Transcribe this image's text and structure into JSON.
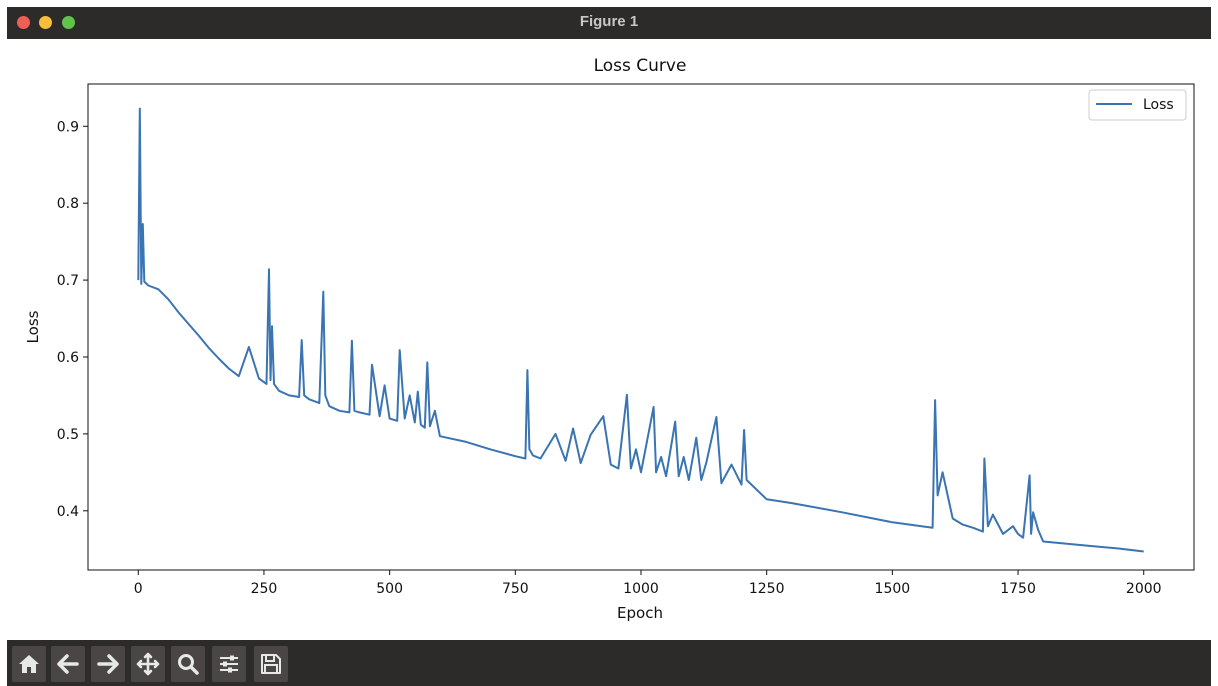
{
  "window": {
    "title": "Figure 1"
  },
  "toolbar": {
    "buttons": [
      {
        "name": "home",
        "icon": "home-icon"
      },
      {
        "name": "back",
        "icon": "arrow-left-icon"
      },
      {
        "name": "forward",
        "icon": "arrow-right-icon"
      },
      {
        "name": "pan",
        "icon": "move-icon"
      },
      {
        "name": "zoom",
        "icon": "magnifier-icon"
      },
      {
        "name": "configure",
        "icon": "sliders-icon"
      },
      {
        "name": "save",
        "icon": "floppy-icon"
      }
    ]
  },
  "chart_data": {
    "type": "line",
    "title": "Loss Curve",
    "xlabel": "Epoch",
    "ylabel": "Loss",
    "xlim": [
      -100,
      2100
    ],
    "ylim": [
      0.323,
      0.955
    ],
    "xticks": [
      0,
      250,
      500,
      750,
      1000,
      1250,
      1500,
      1750,
      2000
    ],
    "yticks": [
      0.4,
      0.5,
      0.6,
      0.7,
      0.8,
      0.9
    ],
    "ytick_labels": [
      "0.4",
      "0.5",
      "0.6",
      "0.7",
      "0.8",
      "0.9"
    ],
    "grid": false,
    "legend": {
      "position": "top-right",
      "entries": [
        "Loss"
      ]
    },
    "series": [
      {
        "name": "Loss",
        "color": "#3a74b2",
        "x": [
          0,
          3,
          6,
          9,
          12,
          20,
          40,
          60,
          80,
          100,
          120,
          140,
          160,
          180,
          200,
          220,
          240,
          255,
          260,
          263,
          266,
          270,
          280,
          300,
          320,
          325,
          330,
          340,
          360,
          368,
          372,
          380,
          400,
          420,
          425,
          430,
          440,
          460,
          465,
          480,
          490,
          500,
          515,
          520,
          530,
          540,
          550,
          556,
          562,
          570,
          575,
          580,
          590,
          600,
          650,
          700,
          750,
          770,
          774,
          778,
          785,
          800,
          830,
          850,
          865,
          880,
          900,
          925,
          940,
          955,
          972,
          980,
          990,
          1000,
          1025,
          1030,
          1040,
          1050,
          1068,
          1075,
          1085,
          1095,
          1110,
          1120,
          1130,
          1150,
          1160,
          1180,
          1200,
          1205,
          1210,
          1250,
          1300,
          1400,
          1500,
          1580,
          1585,
          1590,
          1600,
          1620,
          1640,
          1660,
          1680,
          1683,
          1690,
          1700,
          1720,
          1740,
          1750,
          1760,
          1773,
          1776,
          1780,
          1790,
          1800,
          1850,
          1900,
          1950,
          2000
        ],
        "y": [
          0.7,
          0.923,
          0.695,
          0.773,
          0.698,
          0.693,
          0.688,
          0.675,
          0.658,
          0.643,
          0.628,
          0.612,
          0.598,
          0.585,
          0.575,
          0.613,
          0.572,
          0.565,
          0.714,
          0.57,
          0.64,
          0.565,
          0.556,
          0.55,
          0.548,
          0.622,
          0.55,
          0.545,
          0.54,
          0.685,
          0.55,
          0.536,
          0.53,
          0.528,
          0.621,
          0.53,
          0.528,
          0.525,
          0.59,
          0.523,
          0.563,
          0.52,
          0.517,
          0.609,
          0.52,
          0.55,
          0.515,
          0.555,
          0.512,
          0.508,
          0.593,
          0.51,
          0.53,
          0.497,
          0.49,
          0.48,
          0.471,
          0.468,
          0.583,
          0.48,
          0.472,
          0.468,
          0.5,
          0.465,
          0.507,
          0.462,
          0.499,
          0.523,
          0.46,
          0.455,
          0.551,
          0.455,
          0.48,
          0.45,
          0.535,
          0.45,
          0.47,
          0.445,
          0.516,
          0.445,
          0.47,
          0.44,
          0.495,
          0.44,
          0.463,
          0.522,
          0.436,
          0.46,
          0.434,
          0.505,
          0.44,
          0.415,
          0.41,
          0.398,
          0.385,
          0.378,
          0.544,
          0.42,
          0.45,
          0.39,
          0.382,
          0.378,
          0.373,
          0.468,
          0.38,
          0.395,
          0.37,
          0.38,
          0.37,
          0.365,
          0.446,
          0.37,
          0.398,
          0.375,
          0.36,
          0.357,
          0.354,
          0.351,
          0.347
        ]
      }
    ]
  }
}
